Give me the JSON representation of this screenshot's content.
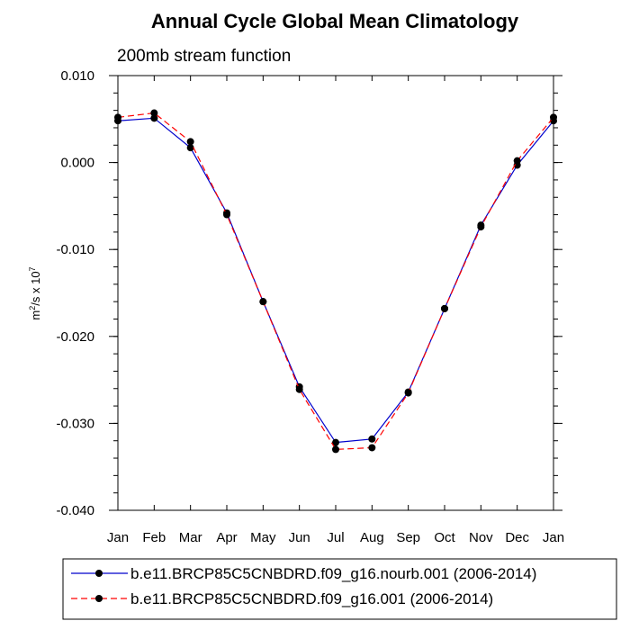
{
  "chart_data": {
    "type": "line",
    "title": "Annual Cycle Global Mean Climatology",
    "subtitle": "200mb stream function",
    "ylabel_parts": {
      "base": "m",
      "sup1": "2",
      "mid": "/s x 10",
      "sup2": "7"
    },
    "xlabel": "",
    "categories": [
      "Jan",
      "Feb",
      "Mar",
      "Apr",
      "May",
      "Jun",
      "Jul",
      "Aug",
      "Sep",
      "Oct",
      "Nov",
      "Dec",
      "Jan"
    ],
    "ylim": [
      -0.04,
      0.01
    ],
    "yticks": [
      0.01,
      0.0,
      -0.01,
      -0.02,
      -0.03,
      -0.04
    ],
    "ytick_labels": [
      "0.010",
      "0.000",
      "-0.010",
      "-0.020",
      "-0.030",
      "-0.040"
    ],
    "y_minor_step": 0.002,
    "grid": false,
    "legend_position": "bottom",
    "series": [
      {
        "name": "b.e11.BRCP85C5CNBDRD.f09_g16.nourb.001 (2006-2014)",
        "color": "#0000cc",
        "dash": "solid",
        "values": [
          0.0048,
          0.0051,
          0.0017,
          -0.0058,
          -0.016,
          -0.0258,
          -0.0322,
          -0.0318,
          -0.0264,
          -0.0168,
          -0.0072,
          -0.0003,
          0.0048
        ]
      },
      {
        "name": "b.e11.BRCP85C5CNBDRD.f09_g16.001 (2006-2014)",
        "color": "#ff0000",
        "dash": "dashed",
        "values": [
          0.0052,
          0.0057,
          0.0024,
          -0.006,
          -0.016,
          -0.0261,
          -0.033,
          -0.0328,
          -0.0265,
          -0.0168,
          -0.0074,
          0.0002,
          0.0052
        ]
      }
    ]
  }
}
